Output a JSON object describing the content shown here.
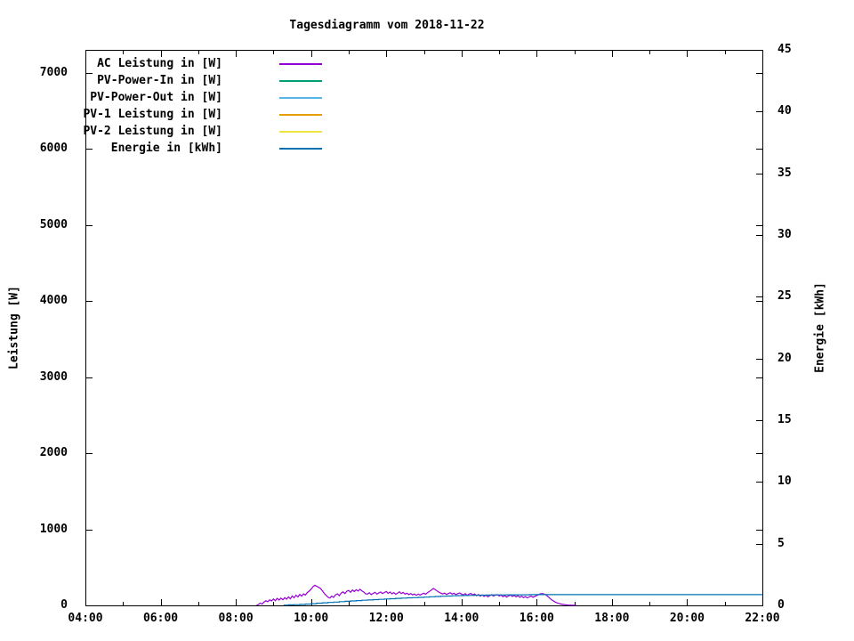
{
  "chart_data": {
    "type": "line",
    "title": "Tagesdiagramm vom 2018-11-22",
    "background": "#ffffff",
    "grid": false,
    "legend_position": "top-left-inside",
    "x_axis": {
      "unit": "time of day",
      "range_hours": [
        4,
        22
      ],
      "major_tick_hours": [
        4,
        6,
        8,
        10,
        12,
        14,
        16,
        18,
        20,
        22
      ],
      "minor_tick_hours": [
        5,
        7,
        9,
        11,
        13,
        15,
        17,
        19,
        21
      ],
      "tick_labels": [
        "04:00",
        "06:00",
        "08:00",
        "10:00",
        "12:00",
        "14:00",
        "16:00",
        "18:00",
        "20:00",
        "22:00"
      ]
    },
    "y_axis": {
      "label": "Leistung [W]",
      "range": [
        0,
        7300
      ],
      "ticks": [
        0,
        1000,
        2000,
        3000,
        4000,
        5000,
        6000,
        7000
      ]
    },
    "y2_axis": {
      "label": "Energie [kWh]",
      "range": [
        0,
        45
      ],
      "ticks": [
        0,
        5,
        10,
        15,
        20,
        25,
        30,
        35,
        40,
        45
      ]
    },
    "series": [
      {
        "name": "AC Leistung in [W]",
        "color": "#9400d3",
        "axis": "y",
        "style": "line",
        "t0": 8.55,
        "dt": 0.05,
        "values": [
          2,
          12,
          30,
          18,
          45,
          62,
          48,
          72,
          58,
          84,
          62,
          92,
          70,
          96,
          74,
          102,
          82,
          112,
          88,
          124,
          100,
          134,
          110,
          144,
          122,
          152,
          136,
          168,
          188,
          214,
          246,
          266,
          252,
          238,
          222,
          192,
          158,
          132,
          108,
          96,
          122,
          104,
          138,
          152,
          126,
          162,
          178,
          156,
          186,
          196,
          172,
          202,
          182,
          206,
          188,
          212,
          192,
          176,
          152,
          148,
          166,
          142,
          158,
          172,
          148,
          164,
          176,
          156,
          170,
          182,
          158,
          176,
          152,
          168,
          146,
          162,
          178,
          156,
          170,
          148,
          160,
          142,
          156,
          138,
          150,
          132,
          148,
          136,
          150,
          160,
          146,
          168,
          184,
          202,
          222,
          208,
          190,
          174,
          162,
          150,
          162,
          144,
          156,
          166,
          148,
          160,
          142,
          154,
          164,
          148,
          138,
          154,
          132,
          148,
          156,
          138,
          150,
          128,
          144,
          122,
          138,
          118,
          134,
          112,
          128,
          140,
          122,
          134,
          142,
          124,
          136,
          114,
          130,
          108,
          124,
          136,
          118,
          130,
          112,
          126,
          106,
          120,
          102,
          116,
          98,
          112,
          124,
          106,
          118,
          130,
          142,
          152,
          156,
          148,
          136,
          116,
          92,
          72,
          56,
          42,
          32,
          24,
          18,
          13,
          9,
          6,
          4,
          3,
          2,
          1,
          0
        ]
      },
      {
        "name": "PV-Power-In in [W]",
        "color": "#009e73",
        "axis": "y",
        "style": "line",
        "points": []
      },
      {
        "name": "PV-Power-Out in [W]",
        "color": "#56b4e9",
        "axis": "y",
        "style": "line",
        "points": []
      },
      {
        "name": "PV-1 Leistung in [W]",
        "color": "#e69f00",
        "axis": "y",
        "style": "line",
        "points": []
      },
      {
        "name": "PV-2 Leistung in [W]",
        "color": "#f0e442",
        "axis": "y",
        "style": "line",
        "points": []
      },
      {
        "name": "Energie in [kWh]",
        "color": "#0072b2",
        "axis": "y2",
        "style": "step",
        "points": [
          [
            9.27,
            0.02
          ],
          [
            9.4,
            0.04
          ],
          [
            9.55,
            0.06
          ],
          [
            9.7,
            0.08
          ],
          [
            9.85,
            0.11
          ],
          [
            10.0,
            0.14
          ],
          [
            10.15,
            0.18
          ],
          [
            10.3,
            0.21
          ],
          [
            10.45,
            0.24
          ],
          [
            10.6,
            0.27
          ],
          [
            10.75,
            0.3
          ],
          [
            10.9,
            0.33
          ],
          [
            11.05,
            0.36
          ],
          [
            11.2,
            0.39
          ],
          [
            11.35,
            0.42
          ],
          [
            11.5,
            0.44
          ],
          [
            11.65,
            0.47
          ],
          [
            11.8,
            0.49
          ],
          [
            11.95,
            0.52
          ],
          [
            12.1,
            0.54
          ],
          [
            12.25,
            0.57
          ],
          [
            12.4,
            0.59
          ],
          [
            12.55,
            0.61
          ],
          [
            12.7,
            0.63
          ],
          [
            12.85,
            0.65
          ],
          [
            13.0,
            0.67
          ],
          [
            13.15,
            0.7
          ],
          [
            13.3,
            0.72
          ],
          [
            13.45,
            0.74
          ],
          [
            13.6,
            0.76
          ],
          [
            13.75,
            0.78
          ],
          [
            13.9,
            0.79
          ],
          [
            14.05,
            0.8
          ],
          [
            14.2,
            0.81
          ],
          [
            14.35,
            0.82
          ],
          [
            14.5,
            0.83
          ],
          [
            14.65,
            0.84
          ],
          [
            14.8,
            0.85
          ],
          [
            15.0,
            0.85
          ],
          [
            15.2,
            0.86
          ],
          [
            15.5,
            0.86
          ],
          [
            15.8,
            0.87
          ],
          [
            22.0,
            0.87
          ]
        ]
      }
    ]
  }
}
